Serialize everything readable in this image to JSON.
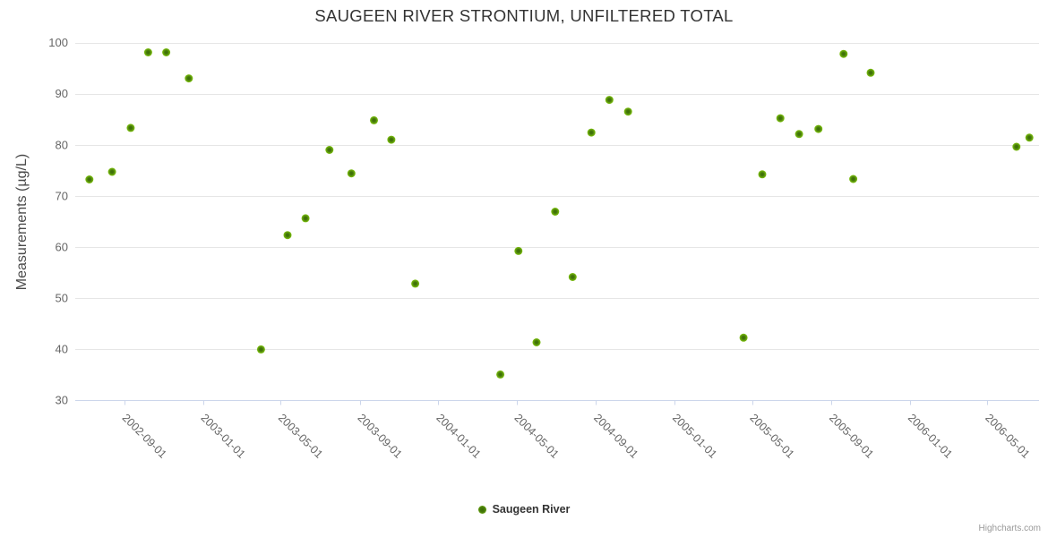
{
  "chart_data": {
    "type": "scatter",
    "title": "SAUGEEN RIVER STRONTIUM, UNFILTERED TOTAL",
    "xlabel": "",
    "ylabel": "Measurements (µg/L)",
    "ylim": [
      30,
      100
    ],
    "y_ticks": [
      30,
      40,
      50,
      60,
      70,
      80,
      90,
      100
    ],
    "x_ticks": [
      "2002-09-01",
      "2003-01-01",
      "2003-05-01",
      "2003-09-01",
      "2004-01-01",
      "2004-05-01",
      "2004-09-01",
      "2005-01-01",
      "2005-05-01",
      "2005-09-01",
      "2006-01-01",
      "2006-05-01"
    ],
    "x_range": [
      "2002-06-17",
      "2006-07-20"
    ],
    "grid": "horizontal",
    "legend_position": "bottom-center",
    "series": [
      {
        "name": "Saugeen River",
        "color": "#68a80b",
        "points": [
          {
            "x": "2002-07-09",
            "y": 73.2
          },
          {
            "x": "2002-08-13",
            "y": 74.7
          },
          {
            "x": "2002-09-11",
            "y": 83.3
          },
          {
            "x": "2002-10-08",
            "y": 98.1
          },
          {
            "x": "2002-11-05",
            "y": 98.1
          },
          {
            "x": "2002-12-10",
            "y": 93.0
          },
          {
            "x": "2003-04-01",
            "y": 39.9
          },
          {
            "x": "2003-05-12",
            "y": 62.3
          },
          {
            "x": "2003-06-09",
            "y": 65.6
          },
          {
            "x": "2003-07-16",
            "y": 79.0
          },
          {
            "x": "2003-08-19",
            "y": 74.4
          },
          {
            "x": "2003-09-23",
            "y": 84.8
          },
          {
            "x": "2003-10-20",
            "y": 81.0
          },
          {
            "x": "2003-11-26",
            "y": 52.8
          },
          {
            "x": "2004-04-06",
            "y": 35.0
          },
          {
            "x": "2004-05-04",
            "y": 59.2
          },
          {
            "x": "2004-06-01",
            "y": 41.3
          },
          {
            "x": "2004-06-30",
            "y": 66.9
          },
          {
            "x": "2004-07-27",
            "y": 54.1
          },
          {
            "x": "2004-08-25",
            "y": 82.4
          },
          {
            "x": "2004-09-22",
            "y": 88.8
          },
          {
            "x": "2004-10-21",
            "y": 86.5
          },
          {
            "x": "2005-04-18",
            "y": 42.2
          },
          {
            "x": "2005-05-17",
            "y": 74.2
          },
          {
            "x": "2005-06-14",
            "y": 85.2
          },
          {
            "x": "2005-07-13",
            "y": 82.1
          },
          {
            "x": "2005-08-12",
            "y": 83.1
          },
          {
            "x": "2005-09-20",
            "y": 97.8
          },
          {
            "x": "2005-10-05",
            "y": 73.3
          },
          {
            "x": "2005-11-01",
            "y": 94.1
          },
          {
            "x": "2006-06-15",
            "y": 79.6
          },
          {
            "x": "2006-07-05",
            "y": 81.4
          }
        ]
      }
    ]
  },
  "legend": {
    "label": "Saugeen River"
  },
  "credits": {
    "label": "Highcharts.com"
  },
  "colors": {
    "point_outer": "#7fc30f",
    "point_inner": "#3b6d04",
    "grid_line": "#e6e6e6",
    "axis_line": "#ccd6eb",
    "tick_label": "#666666",
    "title_text": "#333333",
    "credits_text": "#999999"
  }
}
